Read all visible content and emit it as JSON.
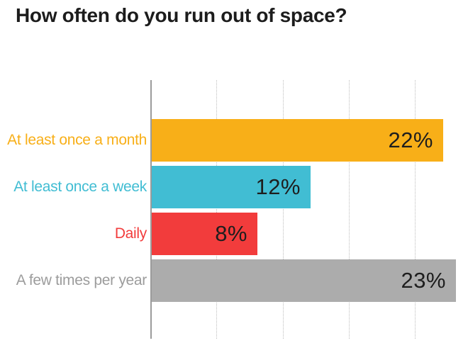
{
  "title": "How often do you run out of space?",
  "colors": {
    "background": "#ffffff",
    "title_text": "#1c1c1c",
    "axis_line": "#9b9b9b",
    "gridline": "#bdbdbd",
    "value_text": "#1e1e1e"
  },
  "chart_data": {
    "type": "bar",
    "orientation": "horizontal",
    "title": "How often do you run out of space?",
    "categories": [
      "At least once a month",
      "At least once a week",
      "Daily",
      "A few times per year"
    ],
    "values": [
      22,
      12,
      8,
      23
    ],
    "value_labels": [
      "22%",
      "12%",
      "8%",
      "23%"
    ],
    "bar_colors": [
      "#F8AF18",
      "#41BDD3",
      "#F23C3C",
      "#ACACAC"
    ],
    "label_colors": [
      "#F8AF18",
      "#41BDD3",
      "#F23C3C",
      "#9C9C9C"
    ],
    "xlabel": "",
    "ylabel": "",
    "xlim": [
      0,
      24
    ],
    "gridlines": [
      5,
      10,
      15,
      20
    ],
    "grid_style": "dotted-vertical",
    "value_label_position": "inside-right",
    "legend": "none"
  }
}
